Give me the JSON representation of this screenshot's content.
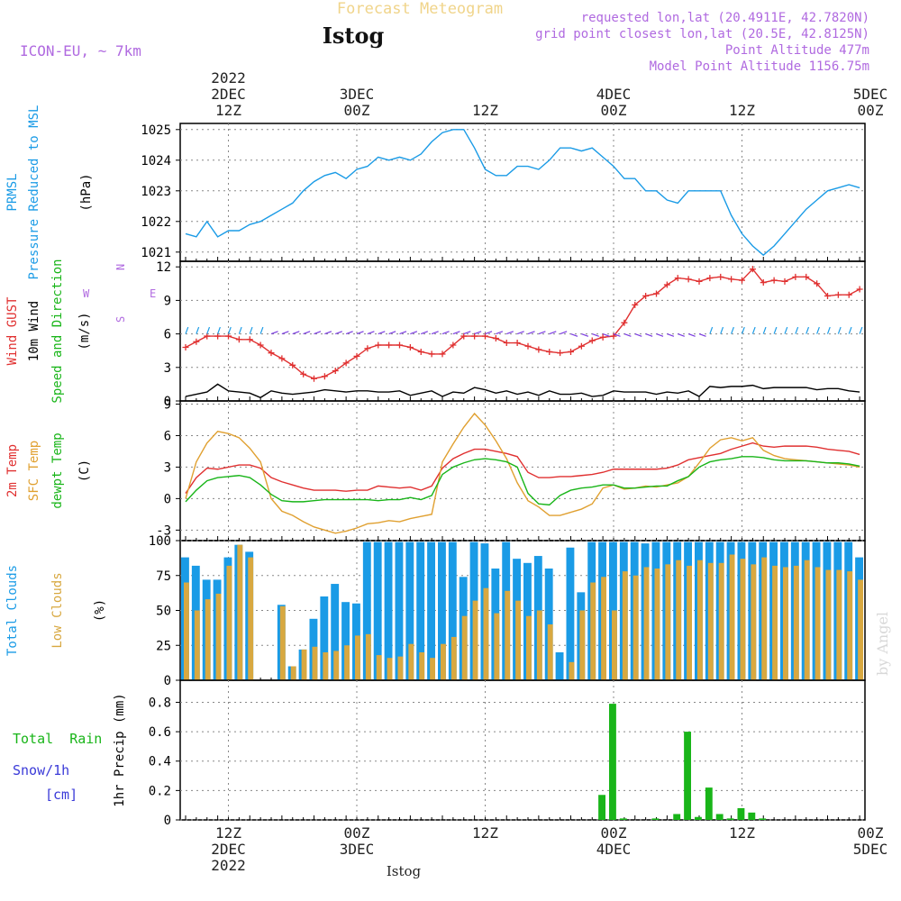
{
  "header": {
    "product_title": "Forecast Meteogram",
    "model_label": "ICON-EU, ~ 7km",
    "station": "Istog",
    "requested_point": "requested lon,lat (20.4911E, 42.7820N)",
    "grid_point": "grid point closest lon,lat (20.5E, 42.8125N)",
    "point_altitude": "Point Altitude 477m",
    "model_altitude": "Model Point Altitude 1156.75m",
    "watermark": "by Angel",
    "bottom_label": "Istog"
  },
  "time_axis": {
    "start_hour": 0,
    "end_hour": 63,
    "major_ticks": [
      {
        "hour": 4,
        "lines": [
          "2022",
          "2DEC",
          "12Z"
        ],
        "bottom_lines": [
          "12Z",
          "2DEC",
          "2022"
        ]
      },
      {
        "hour": 16,
        "lines": [
          "3DEC",
          "00Z"
        ],
        "bottom_lines": [
          "00Z",
          "3DEC"
        ]
      },
      {
        "hour": 28,
        "lines": [
          "12Z"
        ],
        "bottom_lines": [
          "12Z"
        ]
      },
      {
        "hour": 40,
        "lines": [
          "4DEC",
          "00Z"
        ],
        "bottom_lines": [
          "00Z",
          "4DEC"
        ]
      },
      {
        "hour": 52,
        "lines": [
          "12Z"
        ],
        "bottom_lines": [
          "12Z"
        ]
      },
      {
        "hour": 64,
        "lines": [
          "5DEC",
          "00Z"
        ],
        "bottom_lines": [
          "00Z",
          "5DEC"
        ]
      }
    ]
  },
  "panels": {
    "pressure": {
      "labels": [
        {
          "text": "PRMSL",
          "color": "#1a9be6"
        },
        {
          "text": "Pressure Reduced to MSL",
          "color": "#1a9be6"
        },
        {
          "text": "(hPa)",
          "color": "#000000"
        }
      ],
      "yticks": [
        1021,
        1022,
        1023,
        1024,
        1025
      ]
    },
    "wind": {
      "labels": [
        {
          "text": "Wind GUST",
          "color": "#e03030"
        },
        {
          "text": "10m Wind",
          "color": "#000000"
        },
        {
          "text": "Speed and Direction",
          "color": "#19b519"
        },
        {
          "text": "(m/s)",
          "color": "#000000"
        }
      ],
      "compass": {
        "n": "N",
        "s": "S",
        "w": "W",
        "e": "E"
      },
      "yticks": [
        0,
        3,
        6,
        9,
        12
      ]
    },
    "temp": {
      "labels": [
        {
          "text": "2m Temp",
          "color": "#e03030"
        },
        {
          "text": "SFC Temp",
          "color": "#e0a030"
        },
        {
          "text": "dewpt Temp",
          "color": "#19b519"
        },
        {
          "text": "(C)",
          "color": "#000000"
        }
      ],
      "yticks": [
        -3,
        0,
        3,
        6,
        9
      ]
    },
    "clouds": {
      "labels": [
        {
          "text": "Total Clouds",
          "color": "#1a9be6"
        },
        {
          "text": "Low Clouds",
          "color": "#d8a840"
        },
        {
          "text": "(%)",
          "color": "#000000"
        }
      ],
      "yticks": [
        0,
        25,
        50,
        75,
        100
      ]
    },
    "precip": {
      "side_labels": [
        {
          "text": "Total  Rain",
          "color": "#19b519"
        },
        {
          "text": "Snow/1h",
          "color": "#3a3ad8"
        },
        {
          "text": "[cm]",
          "color": "#3a3ad8"
        }
      ],
      "axis_label": "1hr Precip (mm)",
      "yticks": [
        "0",
        "0.2",
        "0.4",
        "0.6",
        "0.8"
      ]
    }
  },
  "chart_data": [
    {
      "type": "line",
      "series": [
        {
          "name": "PRMSL",
          "color": "#1a9be6",
          "x": [
            0,
            1,
            2,
            3,
            4,
            5,
            6,
            7,
            8,
            9,
            10,
            11,
            12,
            13,
            14,
            15,
            16,
            17,
            18,
            19,
            20,
            21,
            22,
            23,
            24,
            25,
            26,
            27,
            28,
            29,
            30,
            31,
            32,
            33,
            34,
            35,
            36,
            37,
            38,
            39,
            40,
            41,
            42,
            43,
            44,
            45,
            46,
            47,
            48,
            49,
            50,
            51,
            52,
            53,
            54,
            55,
            56,
            57,
            58,
            59,
            60,
            61,
            62,
            63
          ],
          "y": [
            1021.6,
            1021.5,
            1022.0,
            1021.5,
            1021.7,
            1021.7,
            1021.9,
            1022.0,
            1022.2,
            1022.4,
            1022.6,
            1023.0,
            1023.3,
            1023.5,
            1023.6,
            1023.4,
            1023.7,
            1023.8,
            1024.1,
            1024.0,
            1024.1,
            1024.0,
            1024.2,
            1024.6,
            1024.9,
            1025.0,
            1025.0,
            1024.4,
            1023.7,
            1023.5,
            1023.5,
            1023.8,
            1023.8,
            1023.7,
            1024.0,
            1024.4,
            1024.4,
            1024.3,
            1024.4,
            1024.1,
            1023.8,
            1023.4,
            1023.4,
            1023.0,
            1023.0,
            1022.7,
            1022.6,
            1023.0,
            1023.0,
            1023.0,
            1023.0,
            1022.2,
            1021.6,
            1021.2,
            1020.9,
            1021.2,
            1021.6,
            1022.0,
            1022.4,
            1022.7,
            1023.0,
            1023.1,
            1023.2,
            1023.1
          ]
        }
      ],
      "ylim": [
        1020.7,
        1025.2
      ]
    },
    {
      "type": "line",
      "series": [
        {
          "name": "Wind GUST",
          "color": "#e03030",
          "y": [
            4.8,
            5.3,
            5.8,
            5.8,
            5.8,
            5.5,
            5.5,
            5.0,
            4.3,
            3.8,
            3.2,
            2.4,
            2.0,
            2.2,
            2.7,
            3.4,
            4.0,
            4.7,
            5.0,
            5.0,
            5.0,
            4.8,
            4.4,
            4.2,
            4.2,
            5.0,
            5.8,
            5.8,
            5.8,
            5.6,
            5.2,
            5.2,
            4.9,
            4.6,
            4.4,
            4.3,
            4.4,
            4.9,
            5.4,
            5.7,
            5.8,
            7.0,
            8.6,
            9.4,
            9.6,
            10.4,
            11.0,
            10.9,
            10.7,
            11.0,
            11.1,
            10.9,
            10.8,
            11.8,
            10.6,
            10.8,
            10.7,
            11.1,
            11.1,
            10.5,
            9.4,
            9.5,
            9.5,
            10.0
          ]
        },
        {
          "name": "10m Wind",
          "color": "#000000",
          "y": [
            0.4,
            0.6,
            0.8,
            1.5,
            0.9,
            0.8,
            0.7,
            0.3,
            0.9,
            0.7,
            0.6,
            0.7,
            0.8,
            1.0,
            0.9,
            0.8,
            0.9,
            0.9,
            0.8,
            0.8,
            0.9,
            0.5,
            0.7,
            0.9,
            0.4,
            0.8,
            0.7,
            1.2,
            1.0,
            0.7,
            0.9,
            0.6,
            0.8,
            0.5,
            0.9,
            0.6,
            0.6,
            0.7,
            0.4,
            0.5,
            0.9,
            0.8,
            0.8,
            0.8,
            0.6,
            0.8,
            0.7,
            0.9,
            0.4,
            1.3,
            1.2,
            1.3,
            1.3,
            1.4,
            1.1,
            1.2,
            1.2,
            1.2,
            1.2,
            1.0,
            1.1,
            1.1,
            0.9,
            0.8
          ]
        }
      ],
      "ylim": [
        0,
        12.5
      ]
    },
    {
      "type": "line",
      "series": [
        {
          "name": "2m Temp",
          "color": "#e03030",
          "y": [
            0.5,
            2.0,
            2.9,
            2.8,
            3.0,
            3.2,
            3.2,
            2.9,
            2.0,
            1.6,
            1.3,
            1.0,
            0.8,
            0.8,
            0.8,
            0.7,
            0.8,
            0.8,
            1.2,
            1.1,
            1.0,
            1.1,
            0.8,
            1.2,
            2.9,
            3.8,
            4.3,
            4.7,
            4.7,
            4.5,
            4.3,
            4.0,
            2.5,
            2.0,
            2.0,
            2.1,
            2.1,
            2.2,
            2.3,
            2.5,
            2.8,
            2.8,
            2.8,
            2.8,
            2.8,
            2.9,
            3.2,
            3.7,
            3.9,
            4.1,
            4.3,
            4.7,
            5.0,
            5.3,
            5.0,
            4.9,
            5.0,
            5.0,
            5.0,
            4.9,
            4.7,
            4.6,
            4.5,
            4.2
          ]
        },
        {
          "name": "SFC Temp",
          "color": "#e0a030",
          "y": [
            0.0,
            3.5,
            5.3,
            6.4,
            6.2,
            5.8,
            4.8,
            3.5,
            0.0,
            -1.2,
            -1.6,
            -2.2,
            -2.7,
            -3.0,
            -3.3,
            -3.1,
            -2.8,
            -2.4,
            -2.3,
            -2.1,
            -2.2,
            -1.9,
            -1.7,
            -1.5,
            3.5,
            5.2,
            6.8,
            8.1,
            7.0,
            5.5,
            3.8,
            1.5,
            -0.2,
            -0.8,
            -1.6,
            -1.6,
            -1.3,
            -1.0,
            -0.5,
            1.0,
            1.3,
            0.9,
            1.0,
            1.2,
            1.1,
            1.3,
            1.5,
            2.1,
            3.4,
            4.8,
            5.6,
            5.8,
            5.5,
            5.8,
            4.6,
            4.1,
            3.8,
            3.7,
            3.6,
            3.5,
            3.4,
            3.3,
            3.2,
            3.0
          ]
        },
        {
          "name": "dewpt Temp",
          "color": "#19b519",
          "y": [
            -0.3,
            0.8,
            1.7,
            2.0,
            2.1,
            2.2,
            2.0,
            1.3,
            0.4,
            -0.2,
            -0.3,
            -0.3,
            -0.2,
            -0.1,
            -0.1,
            -0.1,
            -0.1,
            -0.1,
            -0.2,
            -0.1,
            -0.1,
            0.1,
            -0.1,
            0.3,
            2.3,
            3.0,
            3.4,
            3.7,
            3.8,
            3.7,
            3.5,
            3.0,
            0.5,
            -0.5,
            -0.6,
            0.3,
            0.8,
            1.0,
            1.1,
            1.3,
            1.3,
            1.0,
            1.0,
            1.1,
            1.2,
            1.2,
            1.7,
            2.1,
            3.0,
            3.5,
            3.7,
            3.8,
            4.0,
            4.0,
            3.9,
            3.7,
            3.6,
            3.6,
            3.6,
            3.5,
            3.4,
            3.4,
            3.3,
            3.1
          ]
        }
      ],
      "ylim": [
        -4,
        9.3
      ]
    },
    {
      "type": "bar",
      "series": [
        {
          "name": "Total Clouds",
          "color": "#1a9be6",
          "values": [
            88,
            82,
            72,
            72,
            88,
            97,
            92,
            0,
            0,
            54,
            10,
            22,
            44,
            60,
            69,
            56,
            55,
            99,
            99,
            99,
            99,
            99,
            99,
            99,
            99,
            99,
            74,
            99,
            98,
            80,
            99,
            87,
            84,
            89,
            80,
            20,
            95,
            63,
            99,
            99,
            99,
            99,
            99,
            98,
            99,
            99,
            99,
            99,
            99,
            99,
            99,
            99,
            99,
            99,
            99,
            99,
            99,
            99,
            99,
            99,
            99,
            99,
            99,
            88
          ]
        },
        {
          "name": "Low Clouds",
          "color": "#d8a840",
          "values": [
            70,
            50,
            58,
            62,
            82,
            97,
            88,
            0,
            0,
            53,
            10,
            22,
            24,
            20,
            21,
            25,
            32,
            33,
            18,
            16,
            17,
            26,
            20,
            16,
            26,
            31,
            46,
            57,
            66,
            48,
            64,
            57,
            46,
            50,
            40,
            0,
            13,
            50,
            70,
            74,
            50,
            78,
            75,
            81,
            80,
            83,
            86,
            82,
            86,
            84,
            84,
            90,
            87,
            83,
            88,
            82,
            81,
            82,
            86,
            81,
            79,
            79,
            78,
            72
          ]
        }
      ],
      "ylim": [
        0,
        100
      ]
    },
    {
      "type": "bar",
      "series": [
        {
          "name": "Total Rain",
          "color": "#19b519",
          "values": [
            0,
            0,
            0,
            0,
            0,
            0,
            0,
            0,
            0,
            0,
            0,
            0,
            0,
            0,
            0,
            0,
            0,
            0,
            0,
            0,
            0,
            0,
            0,
            0,
            0,
            0,
            0,
            0,
            0,
            0,
            0,
            0,
            0,
            0,
            0,
            0,
            0,
            0,
            0,
            0.17,
            0.79,
            0.01,
            0,
            0,
            0.01,
            0,
            0.04,
            0.6,
            0.02,
            0.22,
            0.04,
            0.01,
            0.08,
            0.05,
            0.01,
            0,
            0,
            0,
            0,
            0,
            0,
            0,
            0,
            0
          ]
        }
      ],
      "ylim": [
        0,
        0.95
      ]
    }
  ]
}
